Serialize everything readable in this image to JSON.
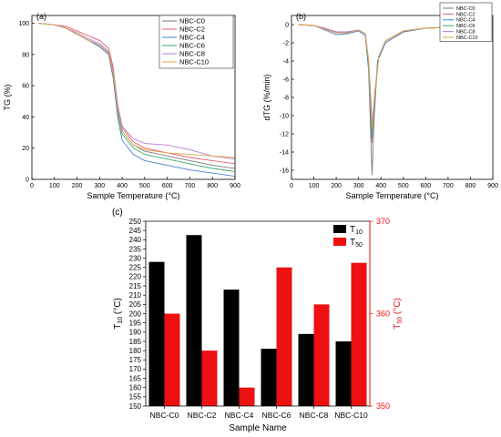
{
  "chart_data": [
    {
      "panel_label": "(a)",
      "type": "line",
      "xlabel": "Sample Temperature (°C)",
      "ylabel": "TG (%)",
      "xlim": [
        0,
        900
      ],
      "ylim": [
        0,
        105
      ],
      "x_ticks": [
        0,
        100,
        200,
        300,
        400,
        500,
        600,
        700,
        800,
        900
      ],
      "y_ticks": [
        0,
        20,
        40,
        60,
        80,
        100
      ],
      "legend_position": "top-right",
      "series": [
        {
          "name": "NBC-C0",
          "color": "#7a7a7a",
          "points": [
            [
              30,
              100
            ],
            [
              100,
              99
            ],
            [
              150,
              97
            ],
            [
              200,
              93
            ],
            [
              250,
              89
            ],
            [
              300,
              86
            ],
            [
              340,
              81
            ],
            [
              360,
              68
            ],
            [
              380,
              45
            ],
            [
              400,
              31
            ],
            [
              450,
              22
            ],
            [
              500,
              18
            ],
            [
              600,
              15
            ],
            [
              700,
              12
            ],
            [
              800,
              9
            ],
            [
              900,
              7
            ]
          ]
        },
        {
          "name": "NBC-C2",
          "color": "#e85d6c",
          "points": [
            [
              30,
              100
            ],
            [
              100,
              99
            ],
            [
              150,
              98
            ],
            [
              200,
              95
            ],
            [
              250,
              92
            ],
            [
              300,
              89
            ],
            [
              340,
              84
            ],
            [
              360,
              72
            ],
            [
              380,
              48
            ],
            [
              400,
              33
            ],
            [
              450,
              24
            ],
            [
              500,
              20
            ],
            [
              600,
              17
            ],
            [
              700,
              14
            ],
            [
              800,
              12
            ],
            [
              900,
              10
            ]
          ]
        },
        {
          "name": "NBC-C4",
          "color": "#4a7fd0",
          "points": [
            [
              30,
              100
            ],
            [
              100,
              99
            ],
            [
              150,
              97
            ],
            [
              200,
              93
            ],
            [
              250,
              89
            ],
            [
              300,
              85
            ],
            [
              340,
              80
            ],
            [
              360,
              65
            ],
            [
              380,
              40
            ],
            [
              400,
              25
            ],
            [
              450,
              16
            ],
            [
              500,
              12
            ],
            [
              600,
              9
            ],
            [
              700,
              6
            ],
            [
              800,
              4
            ],
            [
              900,
              2
            ]
          ]
        },
        {
          "name": "NBC-C6",
          "color": "#3aaa6a",
          "points": [
            [
              30,
              100
            ],
            [
              100,
              99
            ],
            [
              150,
              97
            ],
            [
              200,
              93
            ],
            [
              250,
              89
            ],
            [
              300,
              86
            ],
            [
              340,
              81
            ],
            [
              360,
              67
            ],
            [
              380,
              43
            ],
            [
              400,
              29
            ],
            [
              450,
              20
            ],
            [
              500,
              16
            ],
            [
              600,
              13
            ],
            [
              700,
              10
            ],
            [
              800,
              7
            ],
            [
              900,
              5
            ]
          ]
        },
        {
          "name": "NBC-C8",
          "color": "#b97ad6",
          "points": [
            [
              30,
              100
            ],
            [
              100,
              99
            ],
            [
              150,
              97
            ],
            [
              200,
              94
            ],
            [
              250,
              90
            ],
            [
              300,
              87
            ],
            [
              340,
              82
            ],
            [
              360,
              70
            ],
            [
              380,
              48
            ],
            [
              400,
              34
            ],
            [
              450,
              26
            ],
            [
              500,
              23
            ],
            [
              600,
              22
            ],
            [
              700,
              19
            ],
            [
              800,
              15
            ],
            [
              900,
              13
            ]
          ]
        },
        {
          "name": "NBC-C10",
          "color": "#e0a640",
          "points": [
            [
              30,
              100
            ],
            [
              100,
              99
            ],
            [
              150,
              97
            ],
            [
              200,
              93
            ],
            [
              250,
              89
            ],
            [
              300,
              86
            ],
            [
              340,
              81
            ],
            [
              360,
              68
            ],
            [
              380,
              45
            ],
            [
              400,
              31
            ],
            [
              450,
              22
            ],
            [
              500,
              19
            ],
            [
              600,
              17
            ],
            [
              700,
              16
            ],
            [
              800,
              15
            ],
            [
              900,
              14
            ]
          ]
        }
      ]
    },
    {
      "panel_label": "(b)",
      "type": "line",
      "xlabel": "Sample Temperature (°C)",
      "ylabel": "dTG (%/min)",
      "xlim": [
        0,
        900
      ],
      "ylim": [
        -17,
        1
      ],
      "x_ticks": [
        0,
        100,
        200,
        300,
        400,
        500,
        600,
        700,
        800,
        900
      ],
      "y_ticks": [
        0,
        -2,
        -4,
        -6,
        -8,
        -10,
        -12,
        -14,
        -16
      ],
      "legend_position": "top-right",
      "series": [
        {
          "name": "NBC-C0",
          "color": "#7a7a7a",
          "points": [
            [
              30,
              0
            ],
            [
              100,
              -0.1
            ],
            [
              150,
              -0.5
            ],
            [
              200,
              -0.9
            ],
            [
              250,
              -0.9
            ],
            [
              300,
              -0.6
            ],
            [
              330,
              -1
            ],
            [
              345,
              -5
            ],
            [
              360,
              -16.5
            ],
            [
              370,
              -10
            ],
            [
              385,
              -4
            ],
            [
              420,
              -2
            ],
            [
              500,
              -0.8
            ],
            [
              600,
              -0.4
            ],
            [
              700,
              -0.3
            ],
            [
              800,
              -0.2
            ],
            [
              900,
              -0.2
            ]
          ]
        },
        {
          "name": "NBC-C2",
          "color": "#e85d6c",
          "points": [
            [
              30,
              0
            ],
            [
              100,
              -0.1
            ],
            [
              150,
              -0.4
            ],
            [
              200,
              -0.8
            ],
            [
              250,
              -0.8
            ],
            [
              300,
              -0.6
            ],
            [
              330,
              -1
            ],
            [
              345,
              -4
            ],
            [
              360,
              -13
            ],
            [
              372,
              -8
            ],
            [
              390,
              -3.5
            ],
            [
              420,
              -1.8
            ],
            [
              500,
              -0.7
            ],
            [
              600,
              -0.4
            ],
            [
              700,
              -0.3
            ],
            [
              800,
              -0.2
            ],
            [
              900,
              -0.2
            ]
          ]
        },
        {
          "name": "NBC-C4",
          "color": "#4a7fd0",
          "points": [
            [
              30,
              0
            ],
            [
              100,
              -0.1
            ],
            [
              150,
              -0.6
            ],
            [
              200,
              -1.1
            ],
            [
              250,
              -1
            ],
            [
              300,
              -0.7
            ],
            [
              330,
              -1.2
            ],
            [
              345,
              -5
            ],
            [
              358,
              -12.5
            ],
            [
              370,
              -9
            ],
            [
              385,
              -4
            ],
            [
              420,
              -2
            ],
            [
              500,
              -0.8
            ],
            [
              600,
              -0.4
            ],
            [
              700,
              -0.3
            ],
            [
              800,
              -0.2
            ],
            [
              900,
              -0.2
            ]
          ]
        },
        {
          "name": "NBC-C6",
          "color": "#3aaa6a",
          "points": [
            [
              30,
              0
            ],
            [
              100,
              -0.1
            ],
            [
              150,
              -0.5
            ],
            [
              200,
              -0.9
            ],
            [
              250,
              -0.9
            ],
            [
              300,
              -0.6
            ],
            [
              330,
              -1
            ],
            [
              345,
              -4.5
            ],
            [
              360,
              -12
            ],
            [
              372,
              -8
            ],
            [
              390,
              -3.5
            ],
            [
              420,
              -1.8
            ],
            [
              500,
              -0.7
            ],
            [
              600,
              -0.4
            ],
            [
              700,
              -0.3
            ],
            [
              800,
              -0.2
            ],
            [
              900,
              -0.2
            ]
          ]
        },
        {
          "name": "NBC-C8",
          "color": "#b97ad6",
          "points": [
            [
              30,
              0
            ],
            [
              100,
              -0.1
            ],
            [
              150,
              -0.4
            ],
            [
              200,
              -0.8
            ],
            [
              250,
              -0.8
            ],
            [
              300,
              -0.6
            ],
            [
              330,
              -1
            ],
            [
              345,
              -4
            ],
            [
              362,
              -11
            ],
            [
              375,
              -7
            ],
            [
              390,
              -3.5
            ],
            [
              420,
              -1.8
            ],
            [
              500,
              -0.7
            ],
            [
              600,
              -0.4
            ],
            [
              700,
              -0.3
            ],
            [
              800,
              -0.2
            ],
            [
              900,
              -0.2
            ]
          ]
        },
        {
          "name": "NBC-C10",
          "color": "#e0a640",
          "points": [
            [
              30,
              0
            ],
            [
              100,
              -0.1
            ],
            [
              150,
              -0.5
            ],
            [
              200,
              -0.9
            ],
            [
              250,
              -0.9
            ],
            [
              300,
              -0.6
            ],
            [
              330,
              -1
            ],
            [
              345,
              -4
            ],
            [
              360,
              -11.5
            ],
            [
              372,
              -7.5
            ],
            [
              390,
              -3.5
            ],
            [
              420,
              -1.8
            ],
            [
              500,
              -0.7
            ],
            [
              600,
              -0.4
            ],
            [
              700,
              -0.3
            ],
            [
              800,
              -0.2
            ],
            [
              900,
              -0.2
            ]
          ]
        }
      ]
    },
    {
      "panel_label": "(c)",
      "type": "bar",
      "xlabel": "Sample Name",
      "ylabel_left": {
        "main": "T",
        "sub": "10",
        "unit": " (°C)"
      },
      "ylabel_right": {
        "main": "T",
        "sub": "50",
        "unit": " (°C)"
      },
      "categories": [
        "NBC-C0",
        "NBC-C2",
        "NBC-C4",
        "NBC-C6",
        "NBC-C8",
        "NBC-C10"
      ],
      "ylim_left": [
        150,
        250
      ],
      "ylim_right": [
        350,
        370
      ],
      "y_ticks_left": [
        150,
        155,
        160,
        165,
        170,
        175,
        180,
        185,
        190,
        195,
        200,
        205,
        210,
        215,
        220,
        225,
        230,
        235,
        240,
        245,
        250
      ],
      "y_ticks_right": [
        350,
        360,
        370
      ],
      "legend_position": "top-right",
      "series": [
        {
          "name": {
            "main": "T",
            "sub": "10"
          },
          "axis": "left",
          "color": "#000000",
          "values": [
            228,
            242.5,
            213,
            181,
            189,
            185
          ]
        },
        {
          "name": {
            "main": "T",
            "sub": "50"
          },
          "axis": "right",
          "color": "#ee1111",
          "values": [
            360,
            356,
            352,
            365,
            361,
            365.5
          ]
        }
      ]
    }
  ]
}
